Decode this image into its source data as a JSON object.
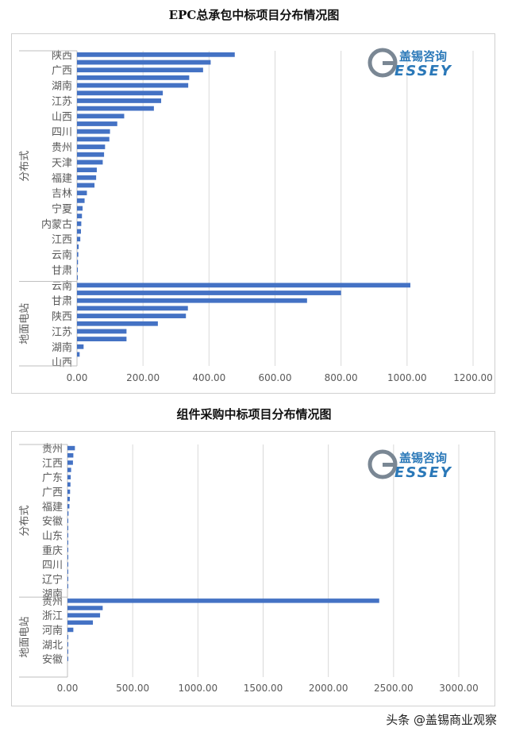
{
  "colors": {
    "bar": "#4472C4",
    "grid": "#d9d9d9",
    "axis_text": "#595959",
    "logo_blue": "#2a78b8",
    "logo_gray": "#7a8794"
  },
  "logo": {
    "mark": "G",
    "name_cn": "盖锡咨询",
    "name_en": "ESSEY"
  },
  "footer": {
    "text": "头条 @盖锡商业观察"
  },
  "chart_data": [
    {
      "type": "bar",
      "orientation": "horizontal",
      "title": "EPC总承包中标项目分布情况图",
      "xlim": [
        0,
        1200
      ],
      "xticks": [
        "0.00",
        "200.00",
        "400.00",
        "600.00",
        "800.00",
        "1000.00",
        "1200.00"
      ],
      "grid": true,
      "groups": [
        {
          "name": "分布式",
          "rows": 30,
          "values": [
            478,
            405,
            382,
            340,
            337,
            260,
            255,
            233,
            143,
            122,
            100,
            98,
            85,
            82,
            78,
            60,
            58,
            53,
            30,
            23,
            17,
            15,
            13,
            12,
            10,
            5,
            4,
            3,
            2,
            1
          ],
          "labels": {
            "0": "陕西",
            "2": "广西",
            "4": "湖南",
            "6": "江苏",
            "8": "山西",
            "10": "四川",
            "12": "贵州",
            "14": "天津",
            "16": "福建",
            "18": "吉林",
            "20": "宁夏",
            "22": "内蒙古",
            "24": "江西",
            "26": "云南",
            "28": "甘肃"
          }
        },
        {
          "name": "地面电站",
          "rows": 11,
          "values": [
            1010,
            800,
            697,
            336,
            330,
            245,
            150,
            150,
            20,
            8,
            0
          ],
          "labels": {
            "0": "云南",
            "2": "甘肃",
            "4": "陕西",
            "6": "江苏",
            "8": "湖南",
            "10": "山西"
          }
        }
      ]
    },
    {
      "type": "bar",
      "orientation": "horizontal",
      "title": "组件采购中标项目分布情况图",
      "xlim": [
        0,
        3000
      ],
      "xticks": [
        "0.00",
        "500.00",
        "1000.00",
        "1500.00",
        "2000.00",
        "2500.00",
        "3000.00"
      ],
      "grid": true,
      "groups": [
        {
          "name": "分布式",
          "rows": 21,
          "values": [
            57,
            45,
            42,
            28,
            25,
            23,
            20,
            18,
            15,
            8,
            6,
            5,
            4,
            3,
            3,
            2,
            2,
            1,
            1,
            1,
            0
          ],
          "labels": {
            "0": "贵州",
            "2": "江西",
            "4": "广东",
            "6": "广西",
            "8": "福建",
            "10": "安徽",
            "12": "山东",
            "14": "重庆",
            "16": "四川",
            "18": "辽宁",
            "20": "湖南"
          }
        },
        {
          "name": "地面电站",
          "rows": 11,
          "values": [
            2390,
            270,
            250,
            195,
            45,
            6,
            3,
            2,
            1,
            0,
            0
          ],
          "labels": {
            "0": "贵州",
            "2": "浙江",
            "4": "河南",
            "6": "湖北",
            "8": "安徽"
          }
        }
      ]
    }
  ]
}
